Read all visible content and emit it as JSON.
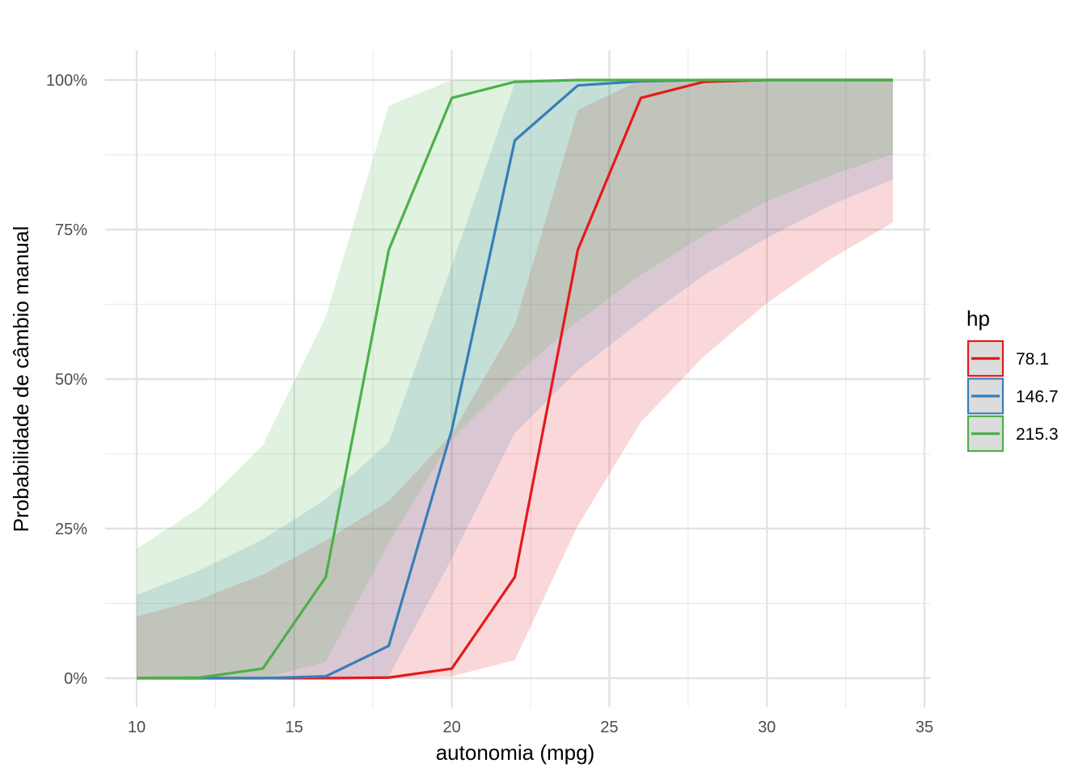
{
  "chart_data": {
    "type": "line",
    "title": "",
    "xlabel": "autonomia (mpg)",
    "ylabel": "Probabilidade de câmbio manual",
    "xlim": [
      8.98,
      35.5
    ],
    "ylim": [
      -4.5,
      105
    ],
    "x_ticks": [
      10,
      15,
      20,
      25,
      30,
      35
    ],
    "x_tick_labels": [
      "10",
      "15",
      "20",
      "25",
      "30",
      "35"
    ],
    "y_ticks": [
      0,
      25,
      50,
      75,
      100
    ],
    "y_tick_labels": [
      "0%",
      "25%",
      "50%",
      "75%",
      "100%"
    ],
    "grid": true,
    "legend": {
      "title": "hp",
      "position": "right"
    },
    "x": [
      10,
      12,
      14,
      16,
      18,
      20,
      22,
      24,
      26,
      28,
      30,
      32,
      34
    ],
    "series": [
      {
        "name": "78.1",
        "color": "#E41A1C",
        "values": [
          0,
          0,
          0,
          0,
          0.1,
          1.6,
          16.9,
          71.6,
          97,
          99.7,
          100,
          100,
          100
        ],
        "ribbon_lower": [
          0,
          0,
          0,
          0,
          0,
          0.3,
          3,
          25.5,
          42.8,
          53.8,
          62.7,
          70,
          76.2
        ],
        "ribbon_upper": [
          10.3,
          13.2,
          17.3,
          23,
          29.6,
          40.8,
          59,
          95,
          100,
          100,
          100,
          100,
          100
        ]
      },
      {
        "name": "146.7",
        "color": "#377EB8",
        "values": [
          0,
          0,
          0,
          0.3,
          5.4,
          41.5,
          89.9,
          99.1,
          99.8,
          100,
          100,
          100,
          100
        ],
        "ribbon_lower": [
          0,
          0,
          0,
          0,
          0.3,
          20,
          41,
          51.5,
          59.7,
          67.4,
          73.6,
          79,
          83.4
        ],
        "ribbon_upper": [
          13.9,
          18,
          23.2,
          29.9,
          39.5,
          69,
          99.5,
          100,
          100,
          100,
          100,
          100,
          100
        ]
      },
      {
        "name": "215.3",
        "color": "#4DAF4A",
        "values": [
          0,
          0.1,
          1.6,
          16.9,
          71.6,
          97,
          99.7,
          100,
          100,
          100,
          100,
          100,
          100
        ],
        "ribbon_lower": [
          0,
          0,
          0,
          2.7,
          22.6,
          40,
          50.5,
          59.7,
          67.4,
          74,
          79.7,
          84,
          87.6
        ],
        "ribbon_upper": [
          21.6,
          28.5,
          38.9,
          60.4,
          95.7,
          100,
          100,
          100,
          100,
          100,
          100,
          100,
          100
        ]
      }
    ]
  }
}
